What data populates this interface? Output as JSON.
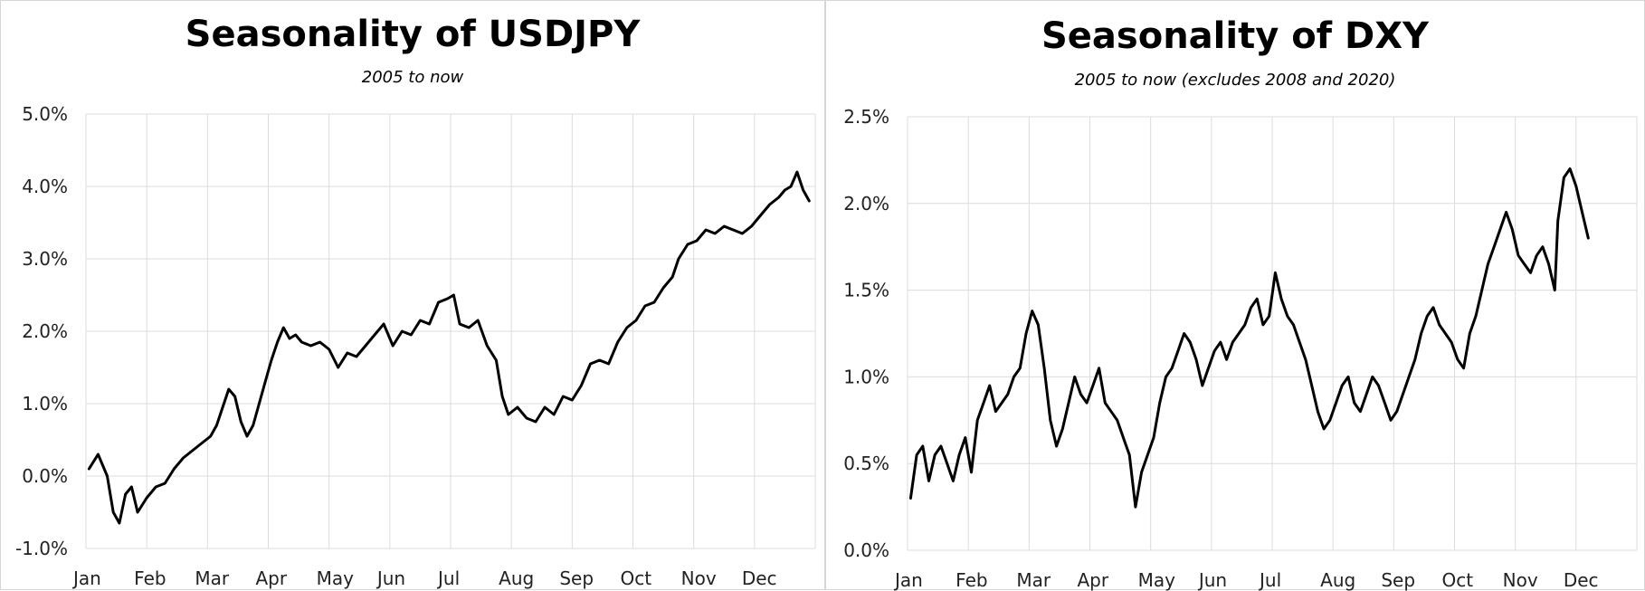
{
  "chart_data": [
    {
      "type": "line",
      "title": "Seasonality of USDJPY",
      "subtitle": "2005 to now",
      "x_tick_labels": [
        "Jan",
        "Feb",
        "Mar",
        "Apr",
        "May",
        "Jun",
        "Jul",
        "Aug",
        "Sep",
        "Oct",
        "Nov",
        "Dec"
      ],
      "y_tick_labels": [
        "-1.0%",
        "0.0%",
        "1.0%",
        "2.0%",
        "3.0%",
        "4.0%",
        "5.0%"
      ],
      "ylim": [
        -1.0,
        5.0
      ],
      "xlim": [
        0,
        12
      ],
      "grid": true,
      "series": [
        {
          "points": [
            [
              0.05,
              0.1
            ],
            [
              0.2,
              0.3
            ],
            [
              0.35,
              0.0
            ],
            [
              0.45,
              -0.5
            ],
            [
              0.55,
              -0.65
            ],
            [
              0.65,
              -0.25
            ],
            [
              0.75,
              -0.15
            ],
            [
              0.85,
              -0.5
            ],
            [
              1.0,
              -0.3
            ],
            [
              1.15,
              -0.15
            ],
            [
              1.3,
              -0.1
            ],
            [
              1.45,
              0.1
            ],
            [
              1.6,
              0.25
            ],
            [
              1.75,
              0.35
            ],
            [
              1.9,
              0.45
            ],
            [
              2.05,
              0.55
            ],
            [
              2.15,
              0.7
            ],
            [
              2.25,
              0.95
            ],
            [
              2.35,
              1.2
            ],
            [
              2.45,
              1.1
            ],
            [
              2.55,
              0.75
            ],
            [
              2.65,
              0.55
            ],
            [
              2.75,
              0.7
            ],
            [
              2.85,
              1.0
            ],
            [
              2.95,
              1.3
            ],
            [
              3.05,
              1.6
            ],
            [
              3.15,
              1.85
            ],
            [
              3.25,
              2.05
            ],
            [
              3.35,
              1.9
            ],
            [
              3.45,
              1.95
            ],
            [
              3.55,
              1.85
            ],
            [
              3.7,
              1.8
            ],
            [
              3.85,
              1.85
            ],
            [
              4.0,
              1.75
            ],
            [
              4.15,
              1.5
            ],
            [
              4.3,
              1.7
            ],
            [
              4.45,
              1.65
            ],
            [
              4.6,
              1.8
            ],
            [
              4.75,
              1.95
            ],
            [
              4.9,
              2.1
            ],
            [
              5.05,
              1.8
            ],
            [
              5.2,
              2.0
            ],
            [
              5.35,
              1.95
            ],
            [
              5.5,
              2.15
            ],
            [
              5.65,
              2.1
            ],
            [
              5.8,
              2.4
            ],
            [
              5.95,
              2.45
            ],
            [
              6.05,
              2.5
            ],
            [
              6.15,
              2.1
            ],
            [
              6.3,
              2.05
            ],
            [
              6.45,
              2.15
            ],
            [
              6.6,
              1.8
            ],
            [
              6.75,
              1.6
            ],
            [
              6.85,
              1.1
            ],
            [
              6.95,
              0.85
            ],
            [
              7.1,
              0.95
            ],
            [
              7.25,
              0.8
            ],
            [
              7.4,
              0.75
            ],
            [
              7.55,
              0.95
            ],
            [
              7.7,
              0.85
            ],
            [
              7.85,
              1.1
            ],
            [
              8.0,
              1.05
            ],
            [
              8.15,
              1.25
            ],
            [
              8.3,
              1.55
            ],
            [
              8.45,
              1.6
            ],
            [
              8.6,
              1.55
            ],
            [
              8.75,
              1.85
            ],
            [
              8.9,
              2.05
            ],
            [
              9.05,
              2.15
            ],
            [
              9.2,
              2.35
            ],
            [
              9.35,
              2.4
            ],
            [
              9.5,
              2.6
            ],
            [
              9.65,
              2.75
            ],
            [
              9.75,
              3.0
            ],
            [
              9.9,
              3.2
            ],
            [
              10.05,
              3.25
            ],
            [
              10.2,
              3.4
            ],
            [
              10.35,
              3.35
            ],
            [
              10.5,
              3.45
            ],
            [
              10.65,
              3.4
            ],
            [
              10.8,
              3.35
            ],
            [
              10.95,
              3.45
            ],
            [
              11.1,
              3.6
            ],
            [
              11.25,
              3.75
            ],
            [
              11.4,
              3.85
            ],
            [
              11.5,
              3.95
            ],
            [
              11.6,
              4.0
            ],
            [
              11.7,
              4.2
            ],
            [
              11.8,
              3.95
            ],
            [
              11.9,
              3.8
            ]
          ]
        }
      ]
    },
    {
      "type": "line",
      "title": "Seasonality of DXY",
      "subtitle": "2005 to now (excludes  2008 and 2020)",
      "x_tick_labels": [
        "Jan",
        "Feb",
        "Mar",
        "Apr",
        "May",
        "Jun",
        "Jul",
        "Aug",
        "Sep",
        "Oct",
        "Nov",
        "Dec"
      ],
      "y_tick_labels": [
        "0.0%",
        "0.5%",
        "1.0%",
        "1.5%",
        "2.0%",
        "2.5%"
      ],
      "ylim": [
        0.0,
        2.5
      ],
      "xlim": [
        0,
        12
      ],
      "grid": true,
      "series": [
        {
          "points": [
            [
              0.05,
              0.3
            ],
            [
              0.15,
              0.55
            ],
            [
              0.25,
              0.6
            ],
            [
              0.35,
              0.4
            ],
            [
              0.45,
              0.55
            ],
            [
              0.55,
              0.6
            ],
            [
              0.65,
              0.5
            ],
            [
              0.75,
              0.4
            ],
            [
              0.85,
              0.55
            ],
            [
              0.95,
              0.65
            ],
            [
              1.05,
              0.45
            ],
            [
              1.15,
              0.75
            ],
            [
              1.25,
              0.85
            ],
            [
              1.35,
              0.95
            ],
            [
              1.45,
              0.8
            ],
            [
              1.55,
              0.85
            ],
            [
              1.65,
              0.9
            ],
            [
              1.75,
              1.0
            ],
            [
              1.85,
              1.05
            ],
            [
              1.95,
              1.25
            ],
            [
              2.05,
              1.38
            ],
            [
              2.15,
              1.3
            ],
            [
              2.25,
              1.05
            ],
            [
              2.35,
              0.75
            ],
            [
              2.45,
              0.6
            ],
            [
              2.55,
              0.7
            ],
            [
              2.65,
              0.85
            ],
            [
              2.75,
              1.0
            ],
            [
              2.85,
              0.9
            ],
            [
              2.95,
              0.85
            ],
            [
              3.05,
              0.95
            ],
            [
              3.15,
              1.05
            ],
            [
              3.25,
              0.85
            ],
            [
              3.35,
              0.8
            ],
            [
              3.45,
              0.75
            ],
            [
              3.55,
              0.65
            ],
            [
              3.65,
              0.55
            ],
            [
              3.75,
              0.25
            ],
            [
              3.85,
              0.45
            ],
            [
              3.95,
              0.55
            ],
            [
              4.05,
              0.65
            ],
            [
              4.15,
              0.85
            ],
            [
              4.25,
              1.0
            ],
            [
              4.35,
              1.05
            ],
            [
              4.45,
              1.15
            ],
            [
              4.55,
              1.25
            ],
            [
              4.65,
              1.2
            ],
            [
              4.75,
              1.1
            ],
            [
              4.85,
              0.95
            ],
            [
              4.95,
              1.05
            ],
            [
              5.05,
              1.15
            ],
            [
              5.15,
              1.2
            ],
            [
              5.25,
              1.1
            ],
            [
              5.35,
              1.2
            ],
            [
              5.45,
              1.25
            ],
            [
              5.55,
              1.3
            ],
            [
              5.65,
              1.4
            ],
            [
              5.75,
              1.45
            ],
            [
              5.85,
              1.3
            ],
            [
              5.95,
              1.35
            ],
            [
              6.05,
              1.6
            ],
            [
              6.15,
              1.45
            ],
            [
              6.25,
              1.35
            ],
            [
              6.35,
              1.3
            ],
            [
              6.45,
              1.2
            ],
            [
              6.55,
              1.1
            ],
            [
              6.65,
              0.95
            ],
            [
              6.75,
              0.8
            ],
            [
              6.85,
              0.7
            ],
            [
              6.95,
              0.75
            ],
            [
              7.05,
              0.85
            ],
            [
              7.15,
              0.95
            ],
            [
              7.25,
              1.0
            ],
            [
              7.35,
              0.85
            ],
            [
              7.45,
              0.8
            ],
            [
              7.55,
              0.9
            ],
            [
              7.65,
              1.0
            ],
            [
              7.75,
              0.95
            ],
            [
              7.85,
              0.85
            ],
            [
              7.95,
              0.75
            ],
            [
              8.05,
              0.8
            ],
            [
              8.15,
              0.9
            ],
            [
              8.25,
              1.0
            ],
            [
              8.35,
              1.1
            ],
            [
              8.45,
              1.25
            ],
            [
              8.55,
              1.35
            ],
            [
              8.65,
              1.4
            ],
            [
              8.75,
              1.3
            ],
            [
              8.85,
              1.25
            ],
            [
              8.95,
              1.2
            ],
            [
              9.05,
              1.1
            ],
            [
              9.15,
              1.05
            ],
            [
              9.25,
              1.25
            ],
            [
              9.35,
              1.35
            ],
            [
              9.45,
              1.5
            ],
            [
              9.55,
              1.65
            ],
            [
              9.65,
              1.75
            ],
            [
              9.75,
              1.85
            ],
            [
              9.85,
              1.95
            ],
            [
              9.95,
              1.85
            ],
            [
              10.05,
              1.7
            ],
            [
              10.15,
              1.65
            ],
            [
              10.25,
              1.6
            ],
            [
              10.35,
              1.7
            ],
            [
              10.45,
              1.75
            ],
            [
              10.55,
              1.65
            ],
            [
              10.65,
              1.5
            ],
            [
              10.7,
              1.9
            ],
            [
              10.8,
              2.15
            ],
            [
              10.9,
              2.2
            ],
            [
              11.0,
              2.1
            ],
            [
              11.1,
              1.95
            ],
            [
              11.2,
              1.8
            ]
          ]
        }
      ]
    }
  ]
}
